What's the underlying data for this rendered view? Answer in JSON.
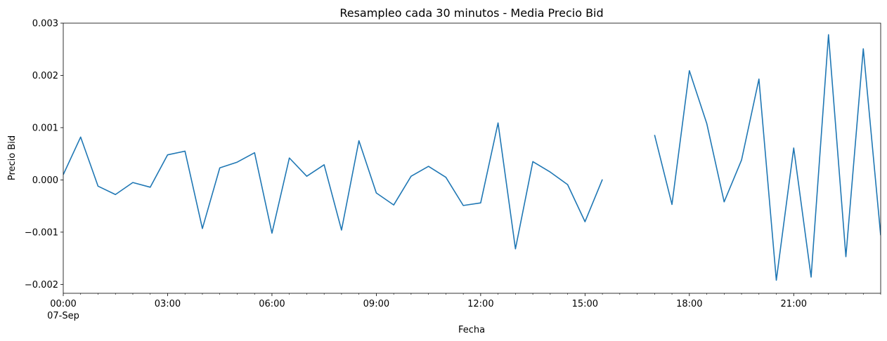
{
  "chart_data": {
    "type": "line",
    "title": "Resampleo cada 30 minutos - Media Precio Bid",
    "xlabel": "Fecha",
    "ylabel": "Precio Bid",
    "line_color": "#1f77b4",
    "x_unit": "hours",
    "xlim": [
      0,
      23.5
    ],
    "ylim": [
      -0.00217,
      0.003
    ],
    "x_ticks": [
      {
        "value": 0,
        "label": "00:00",
        "sublabel": "07-Sep"
      },
      {
        "value": 3,
        "label": "03:00"
      },
      {
        "value": 6,
        "label": "06:00"
      },
      {
        "value": 9,
        "label": "09:00"
      },
      {
        "value": 12,
        "label": "12:00"
      },
      {
        "value": 15,
        "label": "15:00"
      },
      {
        "value": 18,
        "label": "18:00"
      },
      {
        "value": 21,
        "label": "21:00"
      }
    ],
    "y_ticks": [
      {
        "value": -0.002,
        "label": "−0.002"
      },
      {
        "value": -0.001,
        "label": "−0.001"
      },
      {
        "value": 0.0,
        "label": "0.000"
      },
      {
        "value": 0.001,
        "label": "0.001"
      },
      {
        "value": 0.002,
        "label": "0.002"
      },
      {
        "value": 0.003,
        "label": "0.003"
      }
    ],
    "series": [
      {
        "name": "Precio Bid",
        "x": [
          0,
          0.5,
          1,
          1.5,
          2,
          2.5,
          3,
          3.5,
          4,
          4.5,
          5,
          5.5,
          6,
          6.5,
          7,
          7.5,
          8,
          8.5,
          9,
          9.5,
          10,
          10.5,
          11,
          11.5,
          12,
          12.5,
          13,
          13.5,
          14,
          14.5,
          15,
          15.5,
          16,
          16.5,
          17,
          17.5,
          18,
          18.5,
          19,
          19.5,
          20,
          20.5,
          21,
          21.5,
          22,
          22.5,
          23,
          23.5
        ],
        "values": [
          0.0001,
          0.00082,
          -0.00012,
          -0.00028,
          -5e-05,
          -0.00014,
          0.00048,
          0.00055,
          -0.00093,
          0.00023,
          0.00034,
          0.00052,
          -0.00102,
          0.00042,
          7e-05,
          0.00029,
          -0.00096,
          0.00075,
          -0.00025,
          -0.00048,
          7e-05,
          0.00026,
          5e-05,
          -0.00049,
          -0.00044,
          0.00109,
          -0.00132,
          0.00035,
          0.00015,
          -9e-05,
          -0.0008,
          1e-05,
          null,
          null,
          0.00086,
          -0.00047,
          0.00209,
          0.00108,
          -0.00042,
          0.00038,
          0.00193,
          -0.00192,
          0.00061,
          -0.00186,
          0.00278,
          -0.00147,
          0.00251,
          -0.00106
        ]
      }
    ]
  }
}
